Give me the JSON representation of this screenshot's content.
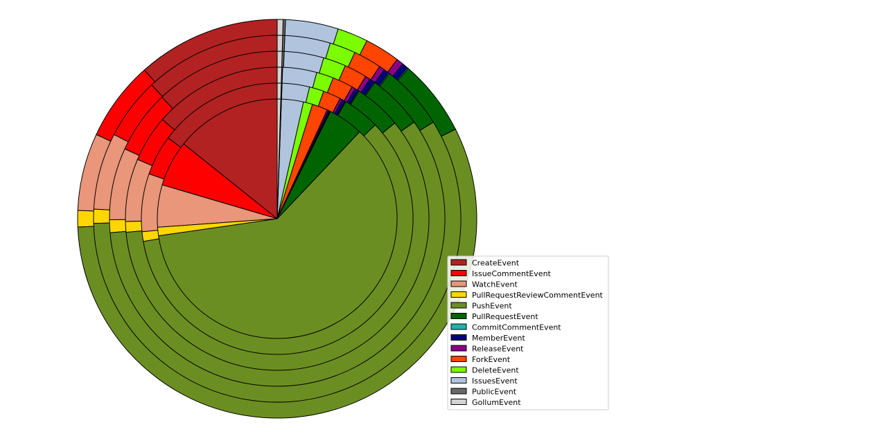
{
  "chart_data": {
    "type": "pie",
    "subtype": "nested-rings",
    "categories": [
      "CreateEvent",
      "IssueCommentEvent",
      "WatchEvent",
      "PullRequestReviewCommentEvent",
      "PushEvent",
      "PullRequestEvent",
      "CommitCommentEvent",
      "MemberEvent",
      "ReleaseEvent",
      "ForkEvent",
      "DeleteEvent",
      "IssuesEvent",
      "PublicEvent",
      "GollumEvent"
    ],
    "colors": [
      "#b22222",
      "#ff0000",
      "#e9967a",
      "#ffd700",
      "#6b8e23",
      "#006400",
      "#20b2aa",
      "#000080",
      "#8b008b",
      "#ff4500",
      "#7cfc00",
      "#b0c4de",
      "#696969",
      "#d3d3d3"
    ],
    "start_angle_deg": 90,
    "direction": "counterclockwise",
    "edge_color": "#000000",
    "legend_placement": "lower-center-right",
    "series": [
      {
        "values": [
          15.0,
          6.5,
          6.0,
          1.2,
          63.8,
          5.0,
          0.1,
          0.2,
          0.2,
          2.2,
          1.3,
          3.1,
          0.1,
          0.5
        ]
      },
      {
        "values": [
          15.5,
          5.0,
          7.2,
          1.2,
          62.1,
          4.6,
          0.1,
          0.4,
          0.3,
          2.2,
          1.8,
          3.4,
          0.1,
          0.5
        ]
      },
      {
        "values": [
          14.3,
          5.2,
          7.0,
          1.2,
          62.3,
          5.3,
          0.1,
          0.4,
          0.4,
          2.3,
          1.9,
          3.8,
          0.1,
          0.5
        ]
      },
      {
        "values": [
          12.7,
          6.4,
          7.3,
          1.3,
          61.5,
          5.6,
          0.1,
          0.5,
          0.5,
          2.3,
          2.3,
          4.0,
          0.2,
          0.5
        ]
      },
      {
        "values": [
          12.6,
          5.7,
          7.1,
          1.3,
          61.4,
          6.0,
          0.1,
          0.5,
          0.5,
          2.6,
          2.4,
          4.2,
          0.2,
          0.5
        ]
      },
      {
        "values": [
          12.2,
          6.8,
          6.6,
          1.4,
          59.7,
          6.5,
          0.1,
          0.5,
          0.6,
          3.0,
          2.6,
          4.5,
          0.2,
          0.5
        ]
      }
    ]
  }
}
